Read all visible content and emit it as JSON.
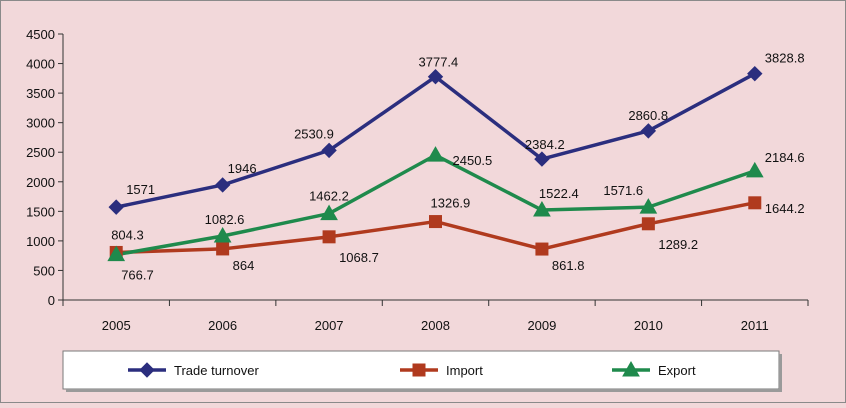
{
  "chart_data": {
    "type": "line",
    "categories": [
      "2005",
      "2006",
      "2007",
      "2008",
      "2009",
      "2010",
      "2011"
    ],
    "ylim": [
      0,
      4500
    ],
    "yticks": [
      "0",
      "500",
      "1000",
      "1500",
      "2000",
      "2500",
      "3000",
      "3500",
      "4000",
      "4500"
    ],
    "grid": false,
    "legend_position": "bottom",
    "series": [
      {
        "name": "Trade turnover",
        "color": "#2b2e7e",
        "marker": "diamond",
        "values": [
          1571,
          1946,
          2530.9,
          3777.4,
          2384.2,
          2860.8,
          3828.8
        ],
        "labels": [
          "1571",
          "1946",
          "2530.9",
          "3777.4",
          "2384.2",
          "2860.8",
          "3828.8"
        ]
      },
      {
        "name": "Import",
        "color": "#b03a1e",
        "marker": "square",
        "values": [
          804.3,
          864,
          1068.7,
          1326.9,
          861.8,
          1289.2,
          1644.2
        ],
        "labels": [
          "804.3",
          "864",
          "1068.7",
          "1326.9",
          "861.8",
          "1289.2",
          "1644.2"
        ]
      },
      {
        "name": "Export",
        "color": "#1f8a4c",
        "marker": "triangle",
        "values": [
          766.7,
          1082.6,
          1462.2,
          2450.5,
          1522.4,
          1571.6,
          2184.6
        ],
        "labels": [
          "766.7",
          "1082.6",
          "1462.2",
          "2450.5",
          "1522.4",
          "1571.6",
          "2184.6"
        ]
      }
    ]
  }
}
